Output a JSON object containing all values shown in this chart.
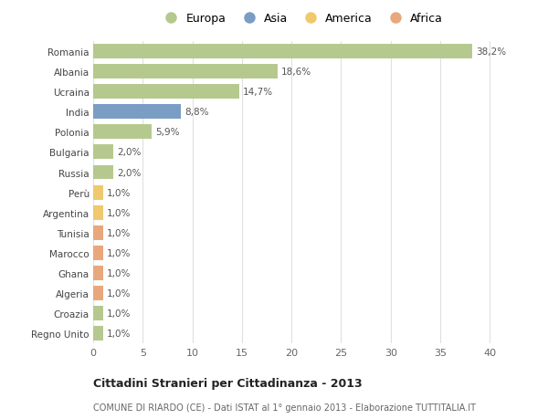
{
  "categories": [
    "Regno Unito",
    "Croazia",
    "Algeria",
    "Ghana",
    "Marocco",
    "Tunisia",
    "Argentina",
    "Perù",
    "Russia",
    "Bulgaria",
    "Polonia",
    "India",
    "Ucraina",
    "Albania",
    "Romania"
  ],
  "values": [
    1.0,
    1.0,
    1.0,
    1.0,
    1.0,
    1.0,
    1.0,
    1.0,
    2.0,
    2.0,
    5.9,
    8.8,
    14.7,
    18.6,
    38.2
  ],
  "labels": [
    "1,0%",
    "1,0%",
    "1,0%",
    "1,0%",
    "1,0%",
    "1,0%",
    "1,0%",
    "1,0%",
    "2,0%",
    "2,0%",
    "5,9%",
    "8,8%",
    "14,7%",
    "18,6%",
    "38,2%"
  ],
  "colors": [
    "#b5c98e",
    "#b5c98e",
    "#e8a87c",
    "#e8a87c",
    "#e8a87c",
    "#e8a87c",
    "#f0c96e",
    "#f0c96e",
    "#b5c98e",
    "#b5c98e",
    "#b5c98e",
    "#7a9dc4",
    "#b5c98e",
    "#b5c98e",
    "#b5c98e"
  ],
  "legend_labels": [
    "Europa",
    "Asia",
    "America",
    "Africa"
  ],
  "legend_colors": [
    "#b5c98e",
    "#7a9dc4",
    "#f0c96e",
    "#e8a87c"
  ],
  "title": "Cittadini Stranieri per Cittadinanza - 2013",
  "subtitle": "COMUNE DI RIARDO (CE) - Dati ISTAT al 1° gennaio 2013 - Elaborazione TUTTITALIA.IT",
  "xlim": [
    0,
    42
  ],
  "xticks": [
    0,
    5,
    10,
    15,
    20,
    25,
    30,
    35,
    40
  ],
  "bg_color": "#ffffff",
  "grid_color": "#e0e0e0",
  "bar_height": 0.72
}
